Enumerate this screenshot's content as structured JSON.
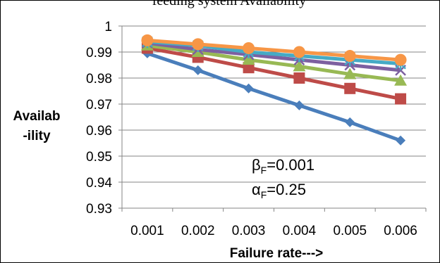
{
  "chart_data": {
    "type": "line",
    "title": "feeding system Availability",
    "xlabel": "Failure rate--->",
    "ylabel_line1": "Availab",
    "ylabel_line2": "-ility",
    "categories": [
      "0.001",
      "0.002",
      "0.003",
      "0.004",
      "0.005",
      "0.006"
    ],
    "ylim": [
      0.93,
      1.0
    ],
    "yticks": [
      "0.93",
      "0.94",
      "0.95",
      "0.96",
      "0.97",
      "0.98",
      "0.99",
      "1"
    ],
    "grid": true,
    "annotation": {
      "beta_symbol": "β",
      "beta_sub": "F",
      "beta_value": "=0.001",
      "alpha_symbol": "α",
      "alpha_sub": "F",
      "alpha_value": "=0.25"
    },
    "series": [
      {
        "values": [
          0.9895,
          0.983,
          0.976,
          0.9695,
          0.963,
          0.956
        ],
        "color": "#4a7ebb",
        "marker": "diamond"
      },
      {
        "values": [
          0.9915,
          0.988,
          0.984,
          0.98,
          0.976,
          0.972
        ],
        "color": "#be4b48",
        "marker": "square"
      },
      {
        "values": [
          0.9925,
          0.99,
          0.987,
          0.9845,
          0.9815,
          0.979
        ],
        "color": "#98b954",
        "marker": "triangle"
      },
      {
        "values": [
          0.9935,
          0.991,
          0.989,
          0.987,
          0.985,
          0.983
        ],
        "color": "#7d60a0",
        "marker": "x"
      },
      {
        "values": [
          0.994,
          0.9925,
          0.99,
          0.9885,
          0.987,
          0.9855
        ],
        "color": "#46aac5",
        "marker": "star"
      },
      {
        "values": [
          0.9945,
          0.993,
          0.9915,
          0.99,
          0.9885,
          0.987
        ],
        "color": "#f79646",
        "marker": "circle"
      }
    ]
  }
}
